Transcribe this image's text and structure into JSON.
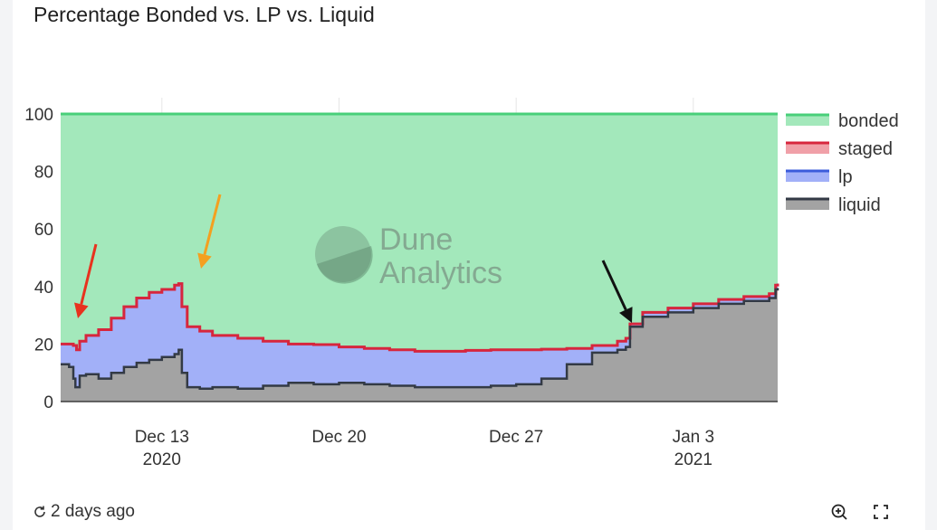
{
  "title": "Percentage Bonded vs. LP vs. Liquid",
  "footer": {
    "refresh_text": "2 days ago"
  },
  "watermark": {
    "line1": "Dune",
    "line2": "Analytics"
  },
  "colors": {
    "bonded_fill": "#a3e8bb",
    "bonded_line": "#49cf7a",
    "staged_line": "#d7263d",
    "lp_fill": "#a2b0f8",
    "lp_line": "#3b5bdb",
    "liquid_fill": "#a3a3a3",
    "liquid_line": "#333a45",
    "arrow_red": "#e8321e",
    "arrow_orange": "#f4a020",
    "arrow_black": "#111111"
  },
  "chart_data": {
    "type": "area",
    "x_start": "2020-12-09",
    "x_end": "2021-01-06",
    "ylim": [
      0,
      100
    ],
    "y_ticks": [
      0,
      20,
      40,
      60,
      80,
      100
    ],
    "x_ticks": [
      {
        "date": "2020-12-13",
        "label1": "Dec 13",
        "label2": "2020"
      },
      {
        "date": "2020-12-20",
        "label1": "Dec 20",
        "label2": ""
      },
      {
        "date": "2020-12-27",
        "label1": "Dec 27",
        "label2": ""
      },
      {
        "date": "2021-01-03",
        "label1": "Jan 3",
        "label2": "2021"
      }
    ],
    "legend": [
      "bonded",
      "staged",
      "lp",
      "liquid"
    ],
    "legend_position": "right",
    "annotations": [
      {
        "color": "arrow_red",
        "target": [
          "2020-12-09 17:00",
          21
        ]
      },
      {
        "color": "arrow_orange",
        "target": [
          "2020-12-13 16:00",
          45
        ]
      },
      {
        "color": "arrow_black",
        "target": [
          "2020-12-31 06:00",
          26
        ]
      }
    ],
    "series": [
      {
        "name": "bonded",
        "values": [
          [
            "2020-12-09",
            100
          ],
          [
            "2021-01-06",
            100
          ]
        ]
      },
      {
        "name": "staged",
        "values": [
          [
            "2020-12-09 00:00",
            20
          ],
          [
            "2020-12-09 12:00",
            19.5
          ],
          [
            "2020-12-09 15:00",
            18.0
          ],
          [
            "2020-12-09 18:00",
            21.0
          ],
          [
            "2020-12-10 00:00",
            23.0
          ],
          [
            "2020-12-10 12:00",
            25.0
          ],
          [
            "2020-12-11 00:00",
            29.0
          ],
          [
            "2020-12-11 12:00",
            33.0
          ],
          [
            "2020-12-12 00:00",
            36.0
          ],
          [
            "2020-12-12 12:00",
            38.0
          ],
          [
            "2020-12-13 00:00",
            39.0
          ],
          [
            "2020-12-13 12:00",
            40.5
          ],
          [
            "2020-12-13 16:00",
            41.0
          ],
          [
            "2020-12-13 19:00",
            33.0
          ],
          [
            "2020-12-14 00:00",
            26.0
          ],
          [
            "2020-12-14 12:00",
            24.5
          ],
          [
            "2020-12-15 00:00",
            23.0
          ],
          [
            "2020-12-16 00:00",
            22.0
          ],
          [
            "2020-12-17 00:00",
            21.0
          ],
          [
            "2020-12-18 00:00",
            20.0
          ],
          [
            "2020-12-19 00:00",
            19.8
          ],
          [
            "2020-12-20 00:00",
            19.0
          ],
          [
            "2020-12-21 00:00",
            18.5
          ],
          [
            "2020-12-22 00:00",
            18.0
          ],
          [
            "2020-12-23 00:00",
            17.5
          ],
          [
            "2020-12-24 00:00",
            17.5
          ],
          [
            "2020-12-25 00:00",
            17.8
          ],
          [
            "2020-12-26 00:00",
            18.0
          ],
          [
            "2020-12-27 00:00",
            18.0
          ],
          [
            "2020-12-28 00:00",
            18.2
          ],
          [
            "2020-12-29 00:00",
            18.5
          ],
          [
            "2020-12-30 00:00",
            19.5
          ],
          [
            "2020-12-31 00:00",
            21.0
          ],
          [
            "2020-12-31 08:00",
            22.0
          ],
          [
            "2020-12-31 12:00",
            27.0
          ],
          [
            "2021-01-01 00:00",
            31.0
          ],
          [
            "2021-01-02 00:00",
            32.5
          ],
          [
            "2021-01-03 00:00",
            34.0
          ],
          [
            "2021-01-04 00:00",
            35.5
          ],
          [
            "2021-01-05 00:00",
            36.5
          ],
          [
            "2021-01-06 00:00",
            37.5
          ],
          [
            "2021-01-06 06:00",
            40.5
          ],
          [
            "2021-01-06 08:00",
            41.0
          ]
        ]
      },
      {
        "name": "lp",
        "values": [
          [
            "2020-12-09 00:00",
            20
          ],
          [
            "2020-12-09 12:00",
            19.5
          ],
          [
            "2020-12-09 15:00",
            18.0
          ],
          [
            "2020-12-09 18:00",
            21.0
          ],
          [
            "2020-12-10 00:00",
            23.0
          ],
          [
            "2020-12-10 12:00",
            25.0
          ],
          [
            "2020-12-11 00:00",
            29.0
          ],
          [
            "2020-12-11 12:00",
            33.0
          ],
          [
            "2020-12-12 00:00",
            36.0
          ],
          [
            "2020-12-12 12:00",
            38.0
          ],
          [
            "2020-12-13 00:00",
            39.0
          ],
          [
            "2020-12-13 12:00",
            40.5
          ],
          [
            "2020-12-13 16:00",
            41.0
          ],
          [
            "2020-12-13 19:00",
            33.0
          ],
          [
            "2020-12-14 00:00",
            26.0
          ],
          [
            "2020-12-14 12:00",
            24.5
          ],
          [
            "2020-12-15 00:00",
            23.0
          ],
          [
            "2020-12-16 00:00",
            22.0
          ],
          [
            "2020-12-17 00:00",
            21.0
          ],
          [
            "2020-12-18 00:00",
            20.0
          ],
          [
            "2020-12-19 00:00",
            19.8
          ],
          [
            "2020-12-20 00:00",
            19.0
          ],
          [
            "2020-12-21 00:00",
            18.5
          ],
          [
            "2020-12-22 00:00",
            18.0
          ],
          [
            "2020-12-23 00:00",
            17.5
          ],
          [
            "2020-12-24 00:00",
            17.5
          ],
          [
            "2020-12-25 00:00",
            17.8
          ],
          [
            "2020-12-26 00:00",
            18.0
          ],
          [
            "2020-12-27 00:00",
            18.0
          ],
          [
            "2020-12-28 00:00",
            18.2
          ],
          [
            "2020-12-29 00:00",
            18.5
          ],
          [
            "2020-12-30 00:00",
            19.5
          ],
          [
            "2020-12-31 00:00",
            21.0
          ],
          [
            "2020-12-31 08:00",
            22.0
          ],
          [
            "2020-12-31 12:00",
            27.0
          ],
          [
            "2021-01-01 00:00",
            31.0
          ],
          [
            "2021-01-02 00:00",
            32.5
          ],
          [
            "2021-01-03 00:00",
            34.0
          ],
          [
            "2021-01-04 00:00",
            35.5
          ],
          [
            "2021-01-05 00:00",
            36.5
          ],
          [
            "2021-01-06 00:00",
            37.5
          ],
          [
            "2021-01-06 06:00",
            40.5
          ],
          [
            "2021-01-06 08:00",
            41.0
          ]
        ]
      },
      {
        "name": "liquid",
        "values": [
          [
            "2020-12-09 00:00",
            13.0
          ],
          [
            "2020-12-09 08:00",
            12.0
          ],
          [
            "2020-12-09 12:00",
            8.0
          ],
          [
            "2020-12-09 14:00",
            5.0
          ],
          [
            "2020-12-09 18:00",
            9.0
          ],
          [
            "2020-12-10 00:00",
            9.5
          ],
          [
            "2020-12-10 12:00",
            8.0
          ],
          [
            "2020-12-11 00:00",
            10.0
          ],
          [
            "2020-12-11 12:00",
            12.0
          ],
          [
            "2020-12-12 00:00",
            13.5
          ],
          [
            "2020-12-12 12:00",
            14.5
          ],
          [
            "2020-12-13 00:00",
            15.5
          ],
          [
            "2020-12-13 12:00",
            16.5
          ],
          [
            "2020-12-13 16:00",
            18.0
          ],
          [
            "2020-12-13 19:00",
            10.0
          ],
          [
            "2020-12-14 00:00",
            5.0
          ],
          [
            "2020-12-14 12:00",
            4.5
          ],
          [
            "2020-12-15 00:00",
            5.0
          ],
          [
            "2020-12-16 00:00",
            4.5
          ],
          [
            "2020-12-17 00:00",
            5.5
          ],
          [
            "2020-12-18 00:00",
            6.5
          ],
          [
            "2020-12-19 00:00",
            6.0
          ],
          [
            "2020-12-20 00:00",
            6.5
          ],
          [
            "2020-12-21 00:00",
            6.0
          ],
          [
            "2020-12-22 00:00",
            5.5
          ],
          [
            "2020-12-23 00:00",
            5.0
          ],
          [
            "2020-12-24 00:00",
            5.0
          ],
          [
            "2020-12-25 00:00",
            5.0
          ],
          [
            "2020-12-26 00:00",
            5.5
          ],
          [
            "2020-12-27 00:00",
            6.0
          ],
          [
            "2020-12-28 00:00",
            8.0
          ],
          [
            "2020-12-29 00:00",
            13.0
          ],
          [
            "2020-12-30 00:00",
            17.0
          ],
          [
            "2020-12-31 00:00",
            18.0
          ],
          [
            "2020-12-31 08:00",
            19.0
          ],
          [
            "2020-12-31 12:00",
            26.0
          ],
          [
            "2021-01-01 00:00",
            29.5
          ],
          [
            "2021-01-02 00:00",
            31.0
          ],
          [
            "2021-01-03 00:00",
            32.5
          ],
          [
            "2021-01-04 00:00",
            34.0
          ],
          [
            "2021-01-05 00:00",
            35.0
          ],
          [
            "2021-01-06 00:00",
            36.0
          ],
          [
            "2021-01-06 06:00",
            39.0
          ],
          [
            "2021-01-06 08:00",
            39.5
          ]
        ]
      }
    ]
  }
}
